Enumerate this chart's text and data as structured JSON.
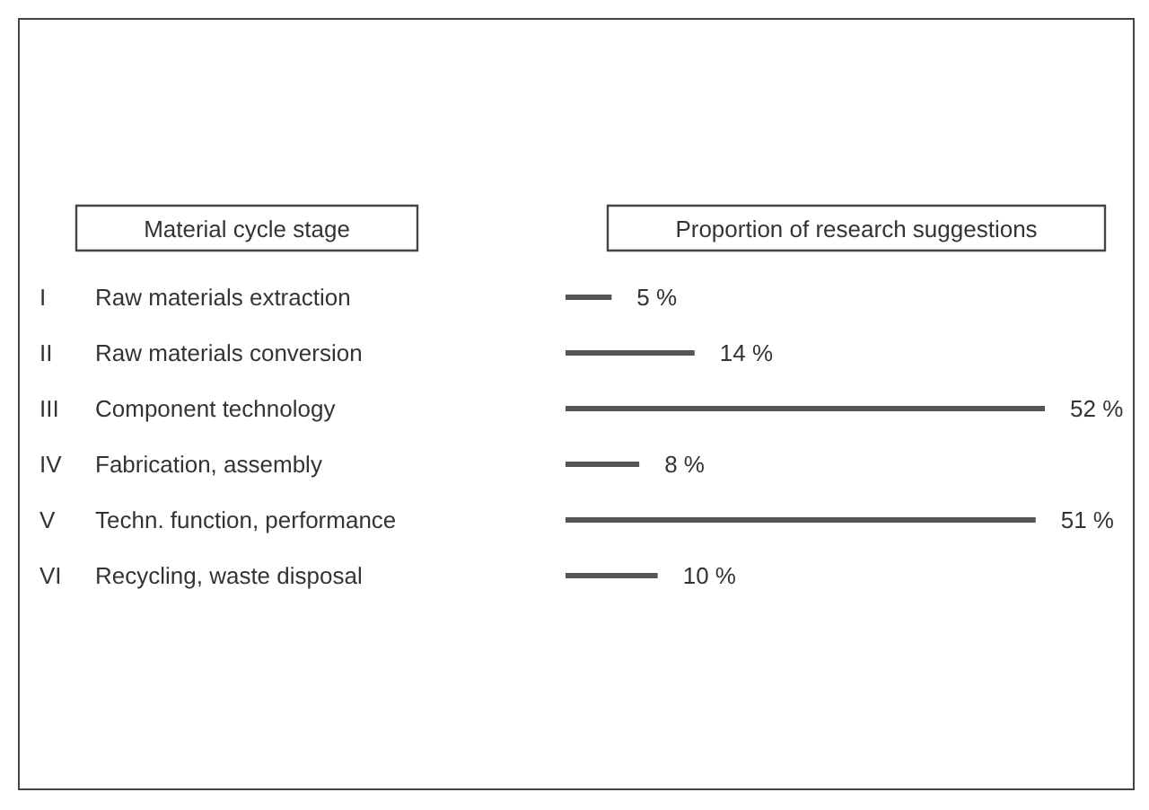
{
  "chart_data": {
    "type": "bar",
    "orientation": "horizontal",
    "annotations": [
      "Material cycle stage"
    ],
    "xlabel": "Proportion of research suggestions",
    "categories": [
      "I Raw materials extraction",
      "II Raw materials conversion",
      "III Component technology",
      "IV Fabrication, assembly",
      "V Techn. function, performance",
      "VI Recycling, waste disposal"
    ],
    "values": [
      5,
      14,
      52,
      8,
      51,
      10
    ],
    "value_labels": [
      "5 %",
      "14 %",
      "52 %",
      "8 %",
      "51 %",
      "10 %"
    ],
    "color": "#555555",
    "tick_labels": "y"
  }
}
